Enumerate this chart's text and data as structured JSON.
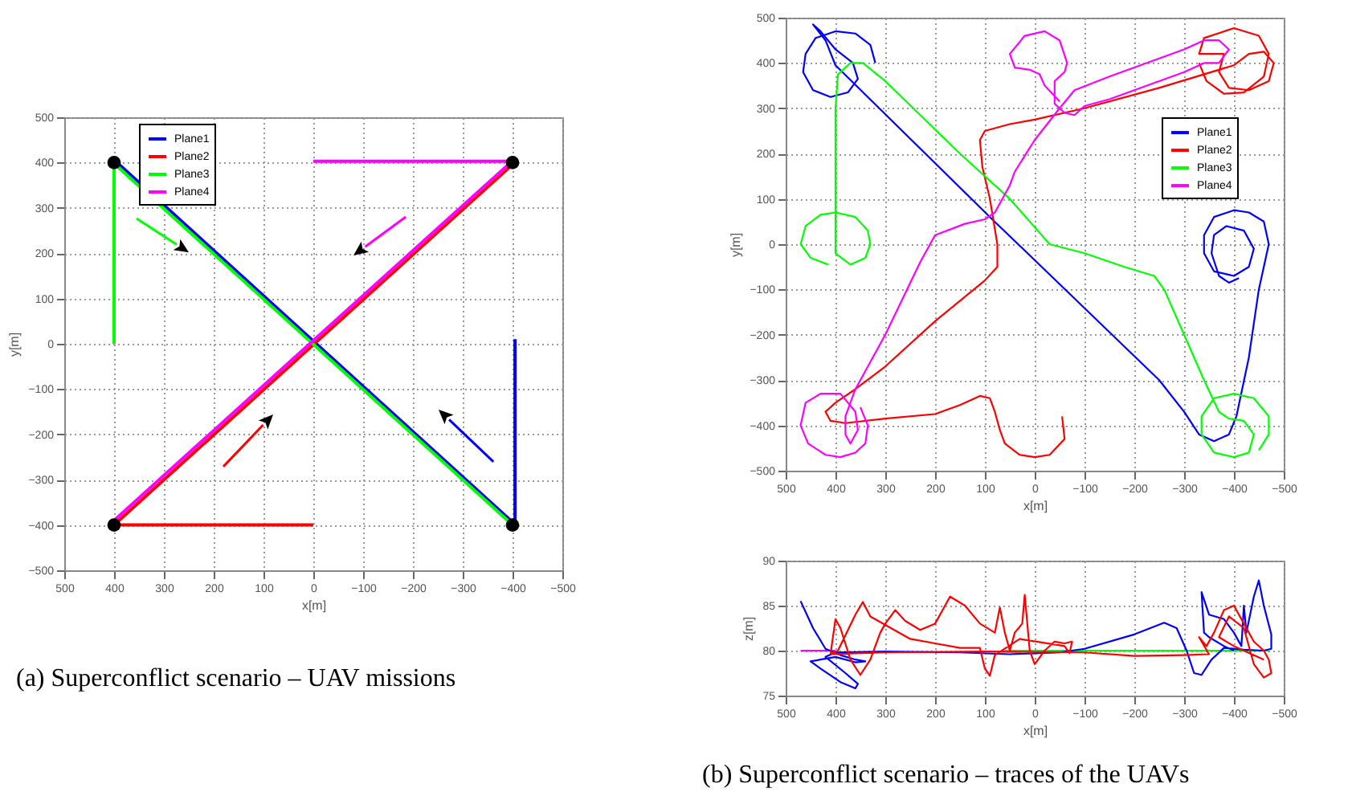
{
  "chart_data": [
    {
      "type": "line",
      "xlabel": "x[m]",
      "ylabel": "y[m]",
      "xlim": [
        500,
        -500
      ],
      "ylim": [
        -500,
        500
      ],
      "xticks": [
        500,
        400,
        300,
        200,
        100,
        0,
        -100,
        -200,
        -300,
        -400,
        -500
      ],
      "yticks": [
        -500,
        -400,
        -300,
        -200,
        -100,
        0,
        100,
        200,
        300,
        400,
        500
      ],
      "grid": true,
      "legend": "top left",
      "annotations": [
        "(a) Superconflict scenario – UAV missions"
      ],
      "series": [
        {
          "name": "Plane1",
          "color": "#0000ff",
          "x": [
            -405,
            -405,
            -398,
            398
          ],
          "values": [
            10,
            -388,
            -392,
            404
          ]
        },
        {
          "name": "Plane2",
          "color": "#ff0000",
          "x": [
            0,
            400,
            400,
            -400
          ],
          "values": [
            -400,
            -400,
            -400,
            396
          ]
        },
        {
          "name": "Plane3",
          "color": "#00ff00",
          "x": [
            400,
            400,
            396,
            -400
          ],
          "values": [
            0,
            396,
            394,
            -400
          ]
        },
        {
          "name": "Plane4",
          "color": "#ff00ff",
          "x": [
            0,
            -400,
            -400,
            400
          ],
          "values": [
            403,
            403,
            404,
            -390
          ]
        },
        {
          "type": "scatter",
          "color": "#000000",
          "x": [
            400,
            -400,
            400,
            -400
          ],
          "values": [
            400,
            400,
            -400,
            -400
          ]
        }
      ]
    },
    {
      "type": "line",
      "xlabel": "x[m]",
      "ylabel": "y[m]",
      "xlim": [
        500,
        -500
      ],
      "ylim": [
        -500,
        500
      ],
      "xticks": [
        500,
        400,
        300,
        200,
        100,
        0,
        -100,
        -200,
        -300,
        -400,
        -500
      ],
      "yticks": [
        -500,
        -400,
        -300,
        -200,
        -100,
        0,
        100,
        200,
        300,
        400,
        500
      ],
      "grid": true,
      "legend": "right",
      "series": [
        {
          "name": "Plane1",
          "color": "#0000ff",
          "x": [
            320,
            330,
            360,
            400,
            440,
            460,
            465,
            445,
            410,
            375,
            355,
            365,
            400,
            430,
            445,
            420,
            400,
            90,
            -250,
            -300,
            -330,
            -360,
            -390,
            -405,
            -430,
            -450,
            -470,
            -460,
            -430,
            -400,
            -360,
            -340,
            -340,
            -360,
            -400,
            -430,
            -440,
            -420,
            -385,
            -360,
            -355,
            -370,
            -390,
            -410
          ],
          "values": [
            400,
            440,
            465,
            470,
            455,
            420,
            380,
            340,
            325,
            335,
            365,
            400,
            430,
            470,
            485,
            450,
            395,
            60,
            -300,
            -370,
            -420,
            -435,
            -420,
            -380,
            -250,
            -100,
            0,
            50,
            70,
            75,
            60,
            20,
            -20,
            -60,
            -70,
            -50,
            -10,
            30,
            40,
            20,
            -20,
            -70,
            -85,
            -75
          ]
        },
        {
          "name": "Plane2",
          "color": "#ff0000",
          "x": [
            -55,
            -60,
            -30,
            0,
            30,
            60,
            70,
            80,
            90,
            110,
            150,
            200,
            300,
            380,
            410,
            420,
            400,
            360,
            300,
            200,
            100,
            75,
            75,
            90,
            105,
            110,
            100,
            50,
            0,
            -100,
            -250,
            -400,
            -430,
            -460,
            -480,
            -470,
            -430,
            -390,
            -370,
            -380,
            -330,
            -340,
            -400,
            -450,
            -470,
            -460,
            -420,
            -380,
            -345,
            -330
          ],
          "values": [
            -380,
            -430,
            -465,
            -470,
            -465,
            -440,
            -410,
            -370,
            -340,
            -335,
            -355,
            -375,
            -385,
            -395,
            -390,
            -370,
            -350,
            -320,
            -270,
            -170,
            -80,
            -50,
            0,
            100,
            170,
            230,
            250,
            265,
            275,
            300,
            345,
            395,
            420,
            425,
            400,
            360,
            340,
            345,
            380,
            420,
            420,
            455,
            477,
            460,
            420,
            370,
            335,
            332,
            360,
            400
          ]
        },
        {
          "name": "Plane3",
          "color": "#00ff00",
          "x": [
            415,
            450,
            470,
            460,
            430,
            400,
            360,
            335,
            330,
            340,
            370,
            400,
            400,
            400,
            395,
            370,
            345,
            300,
            150,
            50,
            -30,
            -100,
            -180,
            -240,
            -260,
            -300,
            -340,
            -370,
            -390,
            -420,
            -440,
            -430,
            -400,
            -360,
            -335,
            -335,
            -360,
            -400,
            -440,
            -470,
            -470,
            -450
          ],
          "values": [
            -45,
            -30,
            0,
            40,
            65,
            70,
            60,
            30,
            0,
            -30,
            -45,
            -20,
            100,
            300,
            375,
            400,
            400,
            360,
            200,
            100,
            0,
            -20,
            -50,
            -70,
            -100,
            -200,
            -300,
            -370,
            -385,
            -390,
            -420,
            -460,
            -470,
            -460,
            -420,
            -380,
            -340,
            -330,
            -340,
            -380,
            -420,
            -455
          ]
        },
        {
          "name": "Plane4",
          "color": "#ff00ff",
          "x": [
            -50,
            -20,
            -10,
            10,
            40,
            50,
            20,
            -20,
            -50,
            -65,
            -60,
            -40,
            -40,
            -60,
            -80,
            -100,
            -150,
            -300,
            -340,
            -370,
            -390,
            -370,
            -340,
            -300,
            -150,
            -80,
            -50,
            0,
            40,
            50,
            80,
            100,
            140,
            200,
            230,
            300,
            360,
            380,
            380,
            370,
            355,
            360,
            390,
            430,
            460,
            470,
            455,
            420,
            390,
            360,
            340,
            335,
            350
          ],
          "values": [
            315,
            350,
            375,
            385,
            390,
            420,
            460,
            470,
            450,
            400,
            380,
            360,
            310,
            290,
            285,
            305,
            320,
            380,
            400,
            400,
            430,
            450,
            450,
            430,
            370,
            340,
            300,
            230,
            160,
            130,
            70,
            55,
            45,
            20,
            -40,
            -200,
            -320,
            -380,
            -420,
            -440,
            -410,
            -370,
            -330,
            -330,
            -350,
            -400,
            -440,
            -465,
            -470,
            -460,
            -440,
            -400,
            -360
          ]
        }
      ]
    },
    {
      "type": "line",
      "xlabel": "x[m]",
      "ylabel": "z[m]",
      "xlim": [
        500,
        -500
      ],
      "ylim": [
        75,
        90
      ],
      "xticks": [
        500,
        400,
        300,
        200,
        100,
        0,
        -100,
        -200,
        -300,
        -400,
        -500
      ],
      "yticks": [
        75,
        80,
        85,
        90
      ],
      "grid": true,
      "annotations": [
        "(b) Superconflict scenario – traces of the UAVs"
      ],
      "series": [
        {
          "color": "#00ff00",
          "x": [
            60,
            -470
          ],
          "values": [
            80,
            80
          ]
        },
        {
          "color": "#ff00ff",
          "x": [
            470,
            400
          ],
          "values": [
            80,
            80
          ]
        },
        {
          "color": "#0000ff",
          "x": [
            470,
            445,
            420,
            390,
            360,
            340,
            360,
            400,
            450,
            430,
            390,
            360,
            355,
            380,
            420,
            400,
            300,
            150,
            50,
            0,
            -50,
            -100,
            -200,
            -260,
            -285,
            -305,
            -320,
            -335,
            -355,
            -380,
            -420,
            -460,
            -475,
            -475,
            -460,
            -450,
            -440,
            -425,
            -420,
            -415,
            -400,
            -380,
            -350,
            -335,
            -340,
            -350,
            -380,
            -400
          ],
          "values": [
            85.5,
            82.5,
            80.2,
            79.5,
            79,
            78.8,
            78.7,
            79.3,
            78.8,
            78,
            76.5,
            75.8,
            76.3,
            77.5,
            79.3,
            79.8,
            79.9,
            79.8,
            79.6,
            79.7,
            79.8,
            80.2,
            81.8,
            83.1,
            82.5,
            80,
            77.5,
            77.3,
            79,
            80.3,
            80.1,
            80,
            80.2,
            81.8,
            85,
            87.8,
            86,
            82,
            85,
            80.5,
            82,
            83.5,
            84,
            86.5,
            82,
            81.5,
            80.5,
            80
          ]
        },
        {
          "color": "#ff0000",
          "x": [
            410,
            400,
            390,
            370,
            350,
            330,
            310,
            300,
            280,
            260,
            230,
            200,
            170,
            140,
            110,
            80,
            70,
            60,
            50,
            40,
            25,
            20,
            10,
            0,
            -20,
            -40,
            -60,
            -75,
            -70,
            -60,
            30,
            80,
            90,
            100,
            110,
            150,
            200,
            250,
            330,
            345,
            360,
            395,
            410,
            300,
            100,
            -100,
            -200,
            -300,
            -350,
            -330,
            -345,
            -360,
            -380,
            -400,
            -420,
            -440,
            -460,
            -470,
            -475,
            -460,
            -440,
            -420,
            -390,
            -370,
            -400,
            -460
          ],
          "values": [
            79.6,
            83.5,
            82.5,
            79,
            77.3,
            79,
            82,
            83,
            84.5,
            83.3,
            82.3,
            83,
            86,
            85,
            83,
            82,
            84.8,
            82,
            80,
            82,
            83,
            86.2,
            80,
            78.5,
            80,
            81,
            80.8,
            81,
            79.7,
            80.5,
            81.3,
            79.5,
            77.2,
            78,
            80.3,
            80.3,
            80.8,
            81.3,
            83.8,
            85.4,
            84,
            80,
            79.6,
            79.8,
            79.9,
            79.8,
            79.4,
            79.5,
            79.6,
            81.5,
            80.5,
            82,
            84.5,
            85,
            83,
            81,
            80,
            79,
            77.5,
            77,
            78.5,
            82.5,
            83.8,
            81.5,
            80.5,
            79
          ]
        }
      ]
    }
  ]
}
